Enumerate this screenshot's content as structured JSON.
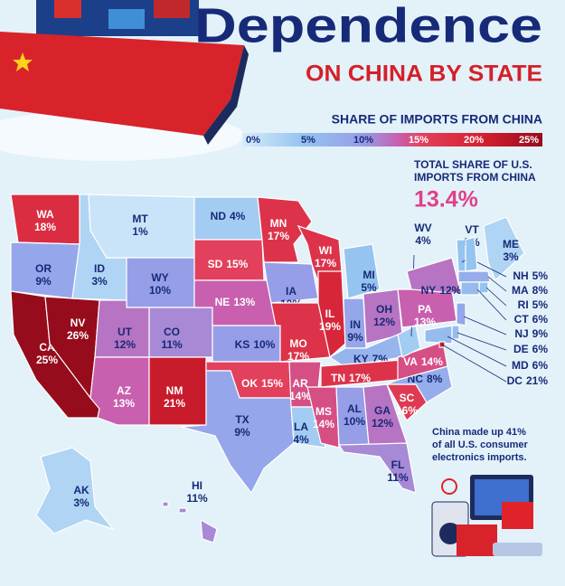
{
  "header": {
    "title": "Dependence",
    "subtitle": "ON CHINA BY STATE"
  },
  "legend": {
    "title": "SHARE OF IMPORTS FROM CHINA",
    "ticks": [
      {
        "value": 0,
        "label": "0%"
      },
      {
        "value": 5,
        "label": "5%"
      },
      {
        "value": 10,
        "label": "10%"
      },
      {
        "value": 15,
        "label": "15%"
      },
      {
        "value": 20,
        "label": "20%"
      },
      {
        "value": 25,
        "label": "25%"
      }
    ]
  },
  "total": {
    "label_lines": [
      "TOTAL SHARE OF U.S.",
      "IMPORTS FROM CHINA"
    ],
    "value": 13.4,
    "value_label": "13.4%"
  },
  "states": [
    {
      "code": "WA",
      "value": 18,
      "label": "18%"
    },
    {
      "code": "OR",
      "value": 9,
      "label": "9%"
    },
    {
      "code": "CA",
      "value": 25,
      "label": "25%"
    },
    {
      "code": "NV",
      "value": 26,
      "label": "26%"
    },
    {
      "code": "ID",
      "value": 3,
      "label": "3%"
    },
    {
      "code": "MT",
      "value": 1,
      "label": "1%"
    },
    {
      "code": "WY",
      "value": 10,
      "label": "10%"
    },
    {
      "code": "UT",
      "value": 12,
      "label": "12%"
    },
    {
      "code": "CO",
      "value": 11,
      "label": "11%"
    },
    {
      "code": "AZ",
      "value": 13,
      "label": "13%"
    },
    {
      "code": "NM",
      "value": 21,
      "label": "21%"
    },
    {
      "code": "ND",
      "value": 4,
      "label": "4%"
    },
    {
      "code": "SD",
      "value": 15,
      "label": "15%"
    },
    {
      "code": "NE",
      "value": 13,
      "label": "13%"
    },
    {
      "code": "KS",
      "value": 10,
      "label": "10%"
    },
    {
      "code": "OK",
      "value": 15,
      "label": "15%"
    },
    {
      "code": "TX",
      "value": 9,
      "label": "9%"
    },
    {
      "code": "MN",
      "value": 17,
      "label": "17%"
    },
    {
      "code": "IA",
      "value": 10,
      "label": "10%"
    },
    {
      "code": "MO",
      "value": 17,
      "label": "17%"
    },
    {
      "code": "AR",
      "value": 14,
      "label": "14%"
    },
    {
      "code": "LA",
      "value": 4,
      "label": "4%"
    },
    {
      "code": "WI",
      "value": 17,
      "label": "17%"
    },
    {
      "code": "IL",
      "value": 19,
      "label": "19%"
    },
    {
      "code": "MI",
      "value": 5,
      "label": "5%"
    },
    {
      "code": "IN",
      "value": 9,
      "label": "9%"
    },
    {
      "code": "OH",
      "value": 12,
      "label": "12%"
    },
    {
      "code": "KY",
      "value": 7,
      "label": "7%"
    },
    {
      "code": "TN",
      "value": 17,
      "label": "17%"
    },
    {
      "code": "MS",
      "value": 14,
      "label": "14%"
    },
    {
      "code": "AL",
      "value": 10,
      "label": "10%"
    },
    {
      "code": "GA",
      "value": 12,
      "label": "12%"
    },
    {
      "code": "FL",
      "value": 11,
      "label": "11%"
    },
    {
      "code": "SC",
      "value": 16,
      "label": "16%"
    },
    {
      "code": "NC",
      "value": 8,
      "label": "8%"
    },
    {
      "code": "VA",
      "value": 14,
      "label": "14%"
    },
    {
      "code": "WV",
      "value": 4,
      "label": "4%"
    },
    {
      "code": "PA",
      "value": 13,
      "label": "13%"
    },
    {
      "code": "NY",
      "value": 12,
      "label": "12%"
    },
    {
      "code": "VT",
      "value": 5,
      "label": "5%"
    },
    {
      "code": "ME",
      "value": 3,
      "label": "3%"
    },
    {
      "code": "NH",
      "value": 5,
      "label": "5%"
    },
    {
      "code": "MA",
      "value": 8,
      "label": "8%"
    },
    {
      "code": "RI",
      "value": 5,
      "label": "5%"
    },
    {
      "code": "CT",
      "value": 6,
      "label": "6%"
    },
    {
      "code": "NJ",
      "value": 9,
      "label": "9%"
    },
    {
      "code": "DE",
      "value": 6,
      "label": "6%"
    },
    {
      "code": "MD",
      "value": 6,
      "label": "6%"
    },
    {
      "code": "DC",
      "value": 21,
      "label": "21%"
    },
    {
      "code": "AK",
      "value": 3,
      "label": "3%"
    },
    {
      "code": "HI",
      "value": 11,
      "label": "11%"
    }
  ],
  "note": {
    "lines": [
      "China made up 41%",
      "of all U.S. consumer",
      "electronics imports."
    ]
  }
}
